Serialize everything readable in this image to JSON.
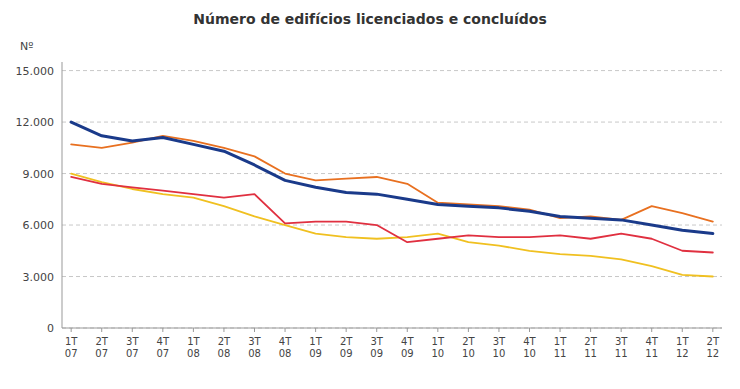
{
  "chart_data": {
    "type": "line",
    "title": "Número de edifícios licenciados e concluídos",
    "ylabel": "Nº",
    "categories": [
      "1T\n07",
      "2T\n07",
      "3T\n07",
      "4T\n07",
      "1T\n08",
      "2T\n08",
      "3T\n08",
      "4T\n08",
      "1T\n09",
      "2T\n09",
      "3T\n09",
      "4T\n09",
      "1T\n10",
      "2T\n10",
      "3T\n10",
      "4T\n10",
      "1T\n11",
      "2T\n11",
      "3T\n11",
      "4T\n11",
      "1T\n12",
      "2T\n12"
    ],
    "series": [
      {
        "color": "#1a3a8a",
        "values": [
          12000,
          11200,
          10900,
          11100,
          10700,
          10300,
          9500,
          8600,
          8200,
          7900,
          7800,
          7500,
          7200,
          7100,
          7000,
          6800,
          6500,
          6400,
          6300,
          6000,
          5700,
          5500
        ]
      },
      {
        "color": "#e87020",
        "values": [
          10700,
          10500,
          10800,
          11200,
          10900,
          10500,
          10000,
          9000,
          8600,
          8700,
          8800,
          8400,
          7300,
          7200,
          7100,
          6900,
          6400,
          6500,
          6300,
          7100,
          6700,
          6200
        ]
      },
      {
        "color": "#e03040",
        "values": [
          8800,
          8400,
          8200,
          8000,
          7800,
          7600,
          7800,
          6100,
          6200,
          6200,
          6000,
          5000,
          5200,
          5400,
          5300,
          5300,
          5400,
          5200,
          5500,
          5200,
          4500,
          4400
        ]
      },
      {
        "color": "#f0c020",
        "values": [
          9000,
          8500,
          8100,
          7800,
          7600,
          7100,
          6500,
          6000,
          5500,
          5300,
          5200,
          5300,
          5500,
          5000,
          4800,
          4500,
          4300,
          4200,
          4000,
          3600,
          3100,
          3000
        ]
      }
    ],
    "ylim": [
      0,
      15500
    ],
    "yticks": [
      0,
      {
        "value": 3000,
        "label": "3.000"
      },
      {
        "value": 6000,
        "label": "6.000"
      },
      {
        "value": 9000,
        "label": "9.000"
      },
      {
        "value": 12000,
        "label": "12.000"
      },
      {
        "value": 15000,
        "label": "15.000"
      }
    ],
    "grid": true
  }
}
